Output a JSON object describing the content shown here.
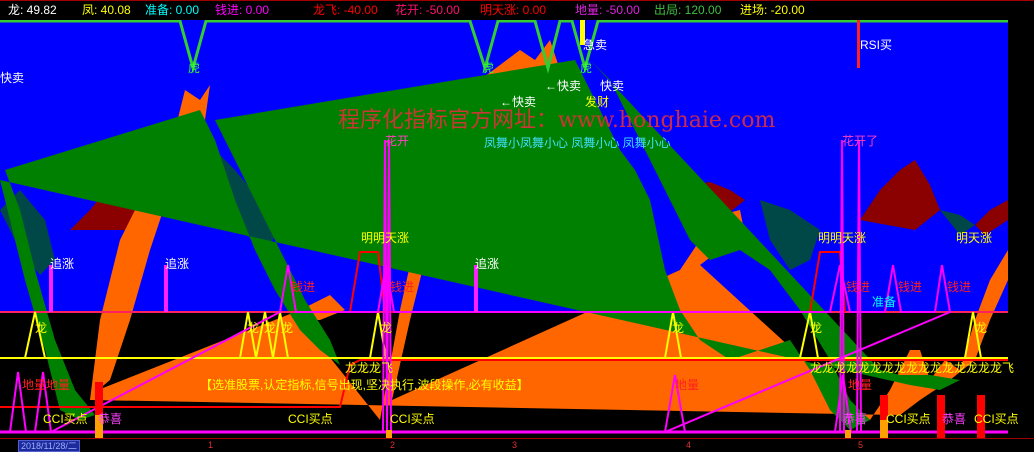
{
  "header": {
    "items": [
      {
        "label": "龙: 49.82",
        "color": "#ffffff"
      },
      {
        "label": "凤: 40.08",
        "color": "#ffff00"
      },
      {
        "label": "准备: 0.00",
        "color": "#00ffff"
      },
      {
        "label": "钱进: 0.00",
        "color": "#ff00ff"
      },
      {
        "label": "龙飞: -40.00",
        "color": "#ff0000"
      },
      {
        "label": "花开: -50.00",
        "color": "#ff0080"
      },
      {
        "label": "明天涨: 0.00",
        "color": "#ff0000"
      },
      {
        "label": "地量: -50.00",
        "color": "#ff00ff"
      },
      {
        "label": "出局: 120.00",
        "color": "#40c040"
      },
      {
        "label": "进场: -20.00",
        "color": "#ffff00"
      }
    ]
  },
  "watermark": "程序化指标官方网址：www.honghaie.com",
  "labels": {
    "kuaimai_left": "快卖",
    "hu1": "虎",
    "hu2": "虎",
    "hu3": "虎",
    "kuaimai1": "←快卖",
    "kuaimai2": "←快卖",
    "kuaimai3": "快卖",
    "facai": "发财",
    "jimai": "急卖",
    "rsi": "RSI买",
    "huakai1": "花开",
    "huakai2": "花开了",
    "fengwu": "凤舞小凤舞小心  凤舞小心  凤舞小心",
    "zhuizhang1": "追涨",
    "zhuizhang2": "追涨",
    "zhuizhang3": "追涨",
    "mingtian1": "明明天涨",
    "mingtian2": "明明天涨",
    "mingtian3": "明天涨",
    "qianjin1": "钱进",
    "qianjin2": "钱进",
    "qianjin3": "钱进",
    "qianjin4": "钱进",
    "qianjin5": "钱进",
    "zhunbei": "准备",
    "long1": "龙",
    "long2": "龙",
    "long3": "龙",
    "long4": "龙",
    "long5": "龙",
    "long6": "龙",
    "long7": "龙",
    "long8": "龙",
    "longfei1": "龙龙龙飞",
    "longfei2": "龙龙龙龙龙龙龙龙龙龙龙龙龙龙龙龙飞",
    "diliang1": "地量地量",
    "diliang2": "地量",
    "diliang3": "地量",
    "slogan": "【选准股票,认定指标,信号出现,坚决执行,波段操作,必有收益】",
    "cci1": "CCI买点",
    "cci2": "CCI买点",
    "cci3": "CCI买点",
    "cci4": "CCI买点",
    "cci5": "CCI买点",
    "gongxi1": "恭喜",
    "gongxi2": "恭喜",
    "gongxi3": "恭喜"
  },
  "axis": {
    "date": "2018/11/28/二",
    "ticks": [
      "1",
      "2",
      "3",
      "4",
      "5"
    ]
  },
  "colors": {
    "upper_bg": "#0000ff",
    "lower_bg": "#000000",
    "band_orange": "#ff6600",
    "band_green": "#008000",
    "up_bars": "#8b0000",
    "down_bars": "#004848"
  }
}
